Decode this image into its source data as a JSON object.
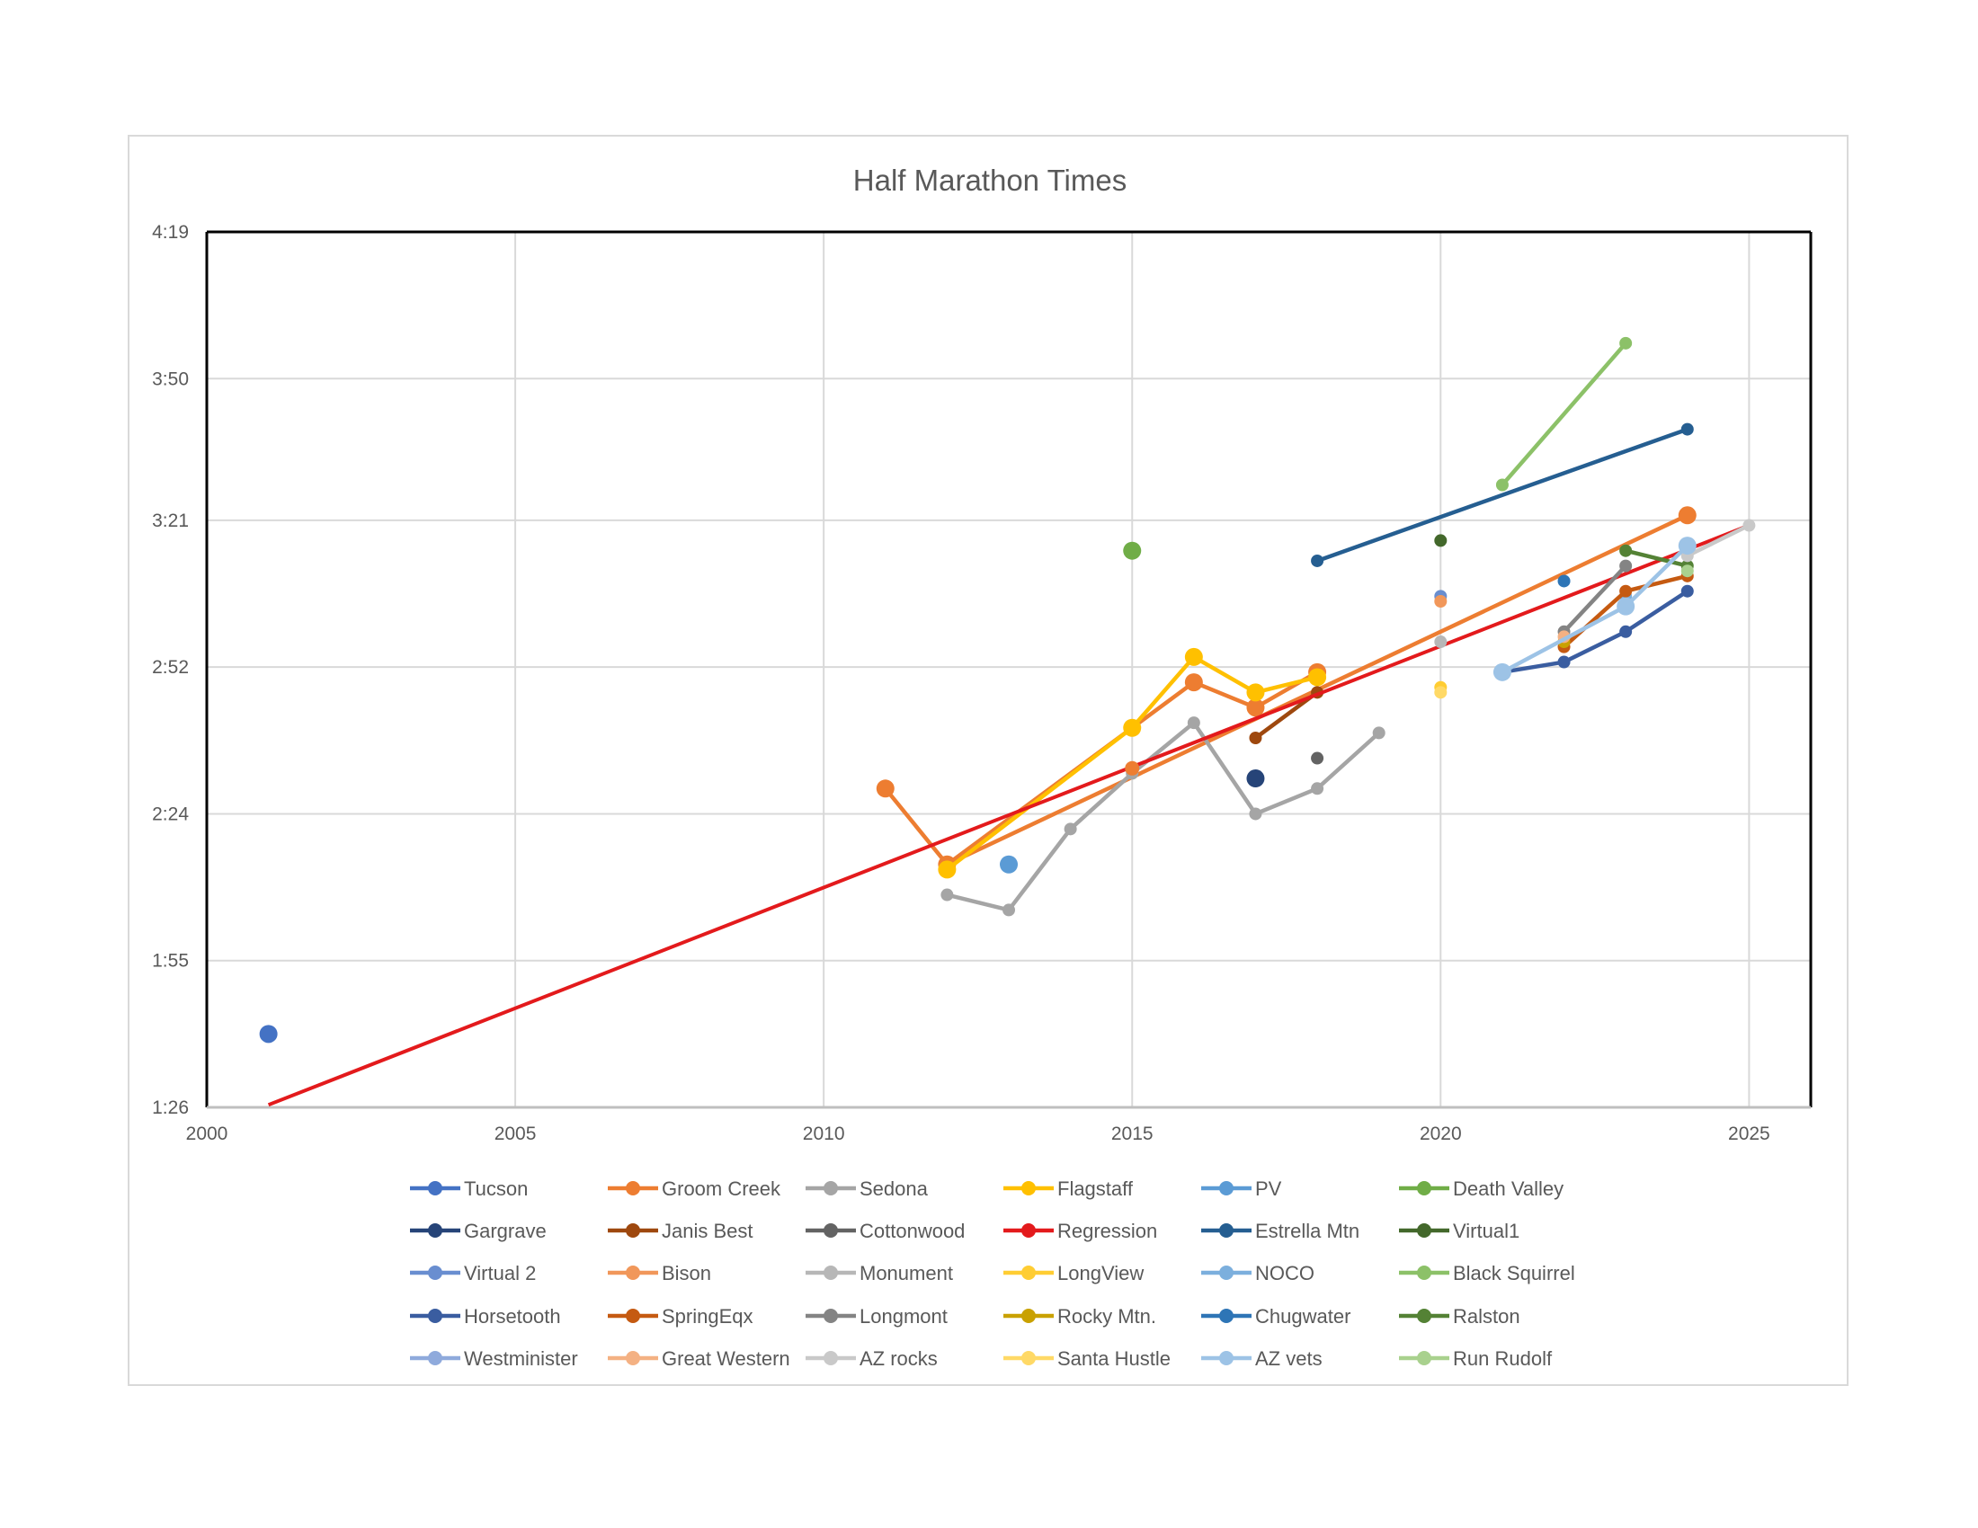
{
  "chart_data": {
    "type": "line",
    "title": "Half Marathon Times",
    "xlabel": "",
    "ylabel": "",
    "xlim": [
      2000,
      2026
    ],
    "ylim": [
      86,
      259
    ],
    "x_ticks": [
      2000,
      2005,
      2010,
      2015,
      2020,
      2025
    ],
    "y_ticks": [
      86,
      115,
      144,
      173,
      202,
      230,
      259
    ],
    "y_tick_labels": [
      "1:26",
      "1:55",
      "2:24",
      "2:52",
      "3:21",
      "3:50",
      "4:19"
    ],
    "grid": true,
    "legend_position": "bottom",
    "series": [
      {
        "name": "Tucson",
        "color": "#4472C4",
        "marker_size": 10,
        "x": [
          2001
        ],
        "y": [
          100.5
        ]
      },
      {
        "name": "Groom Creek",
        "color": "#ED7D31",
        "marker_size": 10,
        "x": [
          2011,
          2012,
          2016,
          2017,
          2018
        ],
        "y": [
          149,
          134,
          170,
          165,
          172
        ]
      },
      {
        "name": "Sedona",
        "color": "#A5A5A5",
        "marker_size": 7,
        "x": [
          2012,
          2013,
          2014,
          2015,
          2016,
          2017,
          2018,
          2019
        ],
        "y": [
          128,
          125,
          141,
          152,
          162,
          144,
          149,
          160
        ]
      },
      {
        "name": "Flagstaff",
        "color": "#FFC000",
        "marker_size": 10,
        "x": [
          2012,
          2015,
          2016,
          2017,
          2018
        ],
        "y": [
          133,
          161,
          175,
          168,
          171
        ]
      },
      {
        "name": "PV",
        "color": "#5B9BD5",
        "marker_size": 10,
        "x": [
          2013
        ],
        "y": [
          134
        ]
      },
      {
        "name": "Death Valley",
        "color": "#70AD47",
        "marker_size": 10,
        "x": [
          2015
        ],
        "y": [
          196
        ]
      },
      {
        "name": "Gargrave",
        "color": "#264478",
        "marker_size": 10,
        "x": [
          2017
        ],
        "y": [
          151
        ]
      },
      {
        "name": "Janis Best",
        "color": "#9E480E",
        "marker_size": 7,
        "x": [
          2017,
          2018
        ],
        "y": [
          159,
          168
        ]
      },
      {
        "name": "Cottonwood",
        "color": "#636363",
        "marker_size": 7,
        "x": [
          2018
        ],
        "y": [
          155
        ]
      },
      {
        "name": "Regression",
        "color": "#E31A1C",
        "marker_size": 0,
        "x": [
          2001,
          2025
        ],
        "y": [
          86.5,
          201
        ]
      },
      {
        "name": "Estrella Mtn",
        "color": "#255E91",
        "marker_size": 7,
        "x": [
          2018,
          2024
        ],
        "y": [
          194,
          220
        ]
      },
      {
        "name": "Virtual1",
        "color": "#43682B",
        "marker_size": 7,
        "x": [
          2020
        ],
        "y": [
          198
        ]
      },
      {
        "name": "Virtual 2",
        "color": "#698ED0",
        "marker_size": 7,
        "x": [
          2020
        ],
        "y": [
          187
        ]
      },
      {
        "name": "Bison",
        "color": "#F1975A",
        "marker_size": 7,
        "x": [
          2020
        ],
        "y": [
          186
        ]
      },
      {
        "name": "Monument",
        "color": "#B7B7B7",
        "marker_size": 7,
        "x": [
          2020
        ],
        "y": [
          178
        ]
      },
      {
        "name": "LongView",
        "color": "#FFCD33",
        "marker_size": 7,
        "x": [
          2020
        ],
        "y": [
          169
        ]
      },
      {
        "name": "NOCO",
        "color": "#7CAFDD",
        "marker_size": 7,
        "x": [
          2023
        ],
        "y": [
          187
        ]
      },
      {
        "name": "Black Squirrel",
        "color": "#8CC168",
        "marker_size": 7,
        "x": [
          2021,
          2023
        ],
        "y": [
          209,
          237
        ]
      },
      {
        "name": "Horsetooth",
        "color": "#3A5DA0",
        "marker_size": 7,
        "x": [
          2021,
          2022,
          2023,
          2024
        ],
        "y": [
          172,
          174,
          180,
          188
        ]
      },
      {
        "name": "SpringEqx",
        "color": "#C55A11",
        "marker_size": 7,
        "x": [
          2022,
          2023,
          2024
        ],
        "y": [
          177,
          188,
          191
        ]
      },
      {
        "name": "Longmont",
        "color": "#848484",
        "marker_size": 7,
        "x": [
          2022,
          2023
        ],
        "y": [
          180,
          193
        ]
      },
      {
        "name": "Rocky Mtn.",
        "color": "#C9A100",
        "marker_size": 7,
        "x": [
          2022
        ],
        "y": [
          178
        ]
      },
      {
        "name": "Chugwater",
        "color": "#2E75B6",
        "marker_size": 7,
        "x": [
          2022
        ],
        "y": [
          190
        ]
      },
      {
        "name": "Ralston",
        "color": "#548235",
        "marker_size": 7,
        "x": [
          2023,
          2024
        ],
        "y": [
          196,
          193
        ]
      },
      {
        "name": "Westminister",
        "color": "#8FAADC",
        "marker_size": 7,
        "x": [
          2021
        ],
        "y": [
          172
        ]
      },
      {
        "name": "Great Western",
        "color": "#F4B183",
        "marker_size": 7,
        "x": [
          2022
        ],
        "y": [
          179
        ]
      },
      {
        "name": "AZ rocks",
        "color": "#C9C9C9",
        "marker_size": 7,
        "x": [
          2024,
          2025
        ],
        "y": [
          195,
          201
        ]
      },
      {
        "name": "Santa Hustle",
        "color": "#FFD966",
        "marker_size": 7,
        "x": [
          2020
        ],
        "y": [
          168
        ]
      },
      {
        "name": "AZ vets",
        "color": "#9DC3E6",
        "marker_size": 10,
        "x": [
          2021,
          2023,
          2024
        ],
        "y": [
          172,
          185,
          197
        ]
      },
      {
        "name": "Run Rudolf",
        "color": "#A9D18E",
        "marker_size": 7,
        "x": [
          2024
        ],
        "y": [
          192
        ]
      }
    ],
    "overlay_marks": [
      {
        "series": "Groom Creek",
        "x": 2024,
        "y": 203,
        "marker_size": 10,
        "line_from": [
          2012,
          134
        ],
        "line_color": "#ED7D31"
      },
      {
        "series": "Groom Creek",
        "x": 2015,
        "y": 153,
        "marker_size": 8
      }
    ]
  }
}
